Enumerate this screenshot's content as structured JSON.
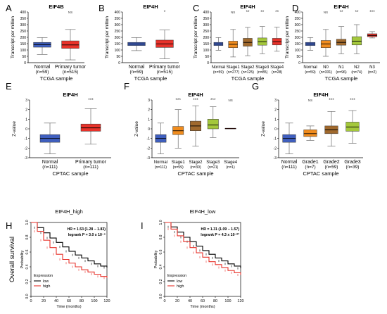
{
  "chart_data": [
    {
      "panel": "A",
      "type": "box",
      "title": "EIF4B",
      "ylabel": "Transcript per million",
      "xlabel": "TCGA sample",
      "ylim": [
        0,
        400
      ],
      "yticks": [
        0,
        50,
        100,
        150,
        200,
        250,
        300,
        350,
        400
      ],
      "categories": [
        "Normal",
        "Primary tumor"
      ],
      "counts": [
        "(n=59)",
        "(n=515)"
      ],
      "box_colors": [
        "#3f5fbf",
        "#e8322a"
      ],
      "significance": [
        "",
        "NS"
      ],
      "boxes": [
        {
          "min": 65,
          "q1": 122,
          "median": 143,
          "q3": 160,
          "max": 198
        },
        {
          "min": 22,
          "q1": 113,
          "median": 140,
          "q3": 172,
          "max": 262
        }
      ]
    },
    {
      "panel": "B",
      "type": "box",
      "title": "EIF4H",
      "ylabel": "Transcript per million",
      "xlabel": "TCGA sample",
      "ylim": [
        0,
        400
      ],
      "yticks": [
        0,
        50,
        100,
        150,
        200,
        250,
        300,
        350,
        400
      ],
      "categories": [
        "Normal",
        "Primary tumor"
      ],
      "counts": [
        "(n=59)",
        "(n=515)"
      ],
      "box_colors": [
        "#3f5fbf",
        "#e8322a"
      ],
      "significance": [
        "",
        "*"
      ],
      "boxes": [
        {
          "min": 95,
          "q1": 135,
          "median": 147,
          "q3": 160,
          "max": 198
        },
        {
          "min": 30,
          "q1": 120,
          "median": 148,
          "q3": 178,
          "max": 258
        }
      ]
    },
    {
      "panel": "C",
      "type": "box",
      "title": "EIF4H",
      "ylabel": "Transcript per million",
      "xlabel": "TCGA sample",
      "ylim": [
        0,
        400
      ],
      "yticks": [
        0,
        50,
        100,
        150,
        200,
        250,
        300,
        350,
        400
      ],
      "categories": [
        "Normal",
        "Stage1",
        "Stage2",
        "Stage3",
        "Stage4"
      ],
      "counts": [
        "(n=59)",
        "(n=277)",
        "(n=125)",
        "(n=85)",
        "(n=28)"
      ],
      "box_colors": [
        "#3f5fbf",
        "#f08c1e",
        "#a0692d",
        "#a4c83c",
        "#e8322a"
      ],
      "significance": [
        "",
        "NS",
        "**",
        "**",
        "**"
      ],
      "boxes": [
        {
          "min": 98,
          "q1": 135,
          "median": 147,
          "q3": 160,
          "max": 198
        },
        {
          "min": 45,
          "q1": 118,
          "median": 145,
          "q3": 170,
          "max": 262
        },
        {
          "min": 55,
          "q1": 130,
          "median": 160,
          "q3": 192,
          "max": 278
        },
        {
          "min": 70,
          "q1": 138,
          "median": 165,
          "q3": 195,
          "max": 285
        },
        {
          "min": 90,
          "q1": 140,
          "median": 165,
          "q3": 192,
          "max": 280
        }
      ]
    },
    {
      "panel": "D",
      "type": "box",
      "title": "EIF4H",
      "ylabel": "Transcript per million",
      "xlabel": "TCGA sample",
      "ylim": [
        0,
        400
      ],
      "yticks": [
        0,
        50,
        100,
        150,
        200,
        250,
        300,
        350,
        400
      ],
      "categories": [
        "Normal",
        "N0",
        "N1",
        "N2",
        "N3"
      ],
      "counts": [
        "(n=59)",
        "(n=331)",
        "(n=96)",
        "(n=74)",
        "(n=2)"
      ],
      "box_colors": [
        "#3f5fbf",
        "#f08c1e",
        "#a0692d",
        "#a4c83c",
        "#e8322a"
      ],
      "significance": [
        "",
        "NS",
        "**",
        "**",
        "***"
      ],
      "boxes": [
        {
          "min": 98,
          "q1": 135,
          "median": 147,
          "q3": 160,
          "max": 198
        },
        {
          "min": 50,
          "q1": 118,
          "median": 148,
          "q3": 175,
          "max": 262
        },
        {
          "min": 70,
          "q1": 138,
          "median": 160,
          "q3": 185,
          "max": 285
        },
        {
          "min": 70,
          "q1": 140,
          "median": 170,
          "q3": 205,
          "max": 300
        },
        {
          "min": 195,
          "q1": 205,
          "median": 215,
          "q3": 228,
          "max": 245
        }
      ]
    },
    {
      "panel": "E",
      "type": "box",
      "title": "EIF4H",
      "ylabel": "Z-value",
      "xlabel": "CPTAC sample",
      "ylim": [
        -3,
        3
      ],
      "yticks": [
        -3,
        -2,
        -1,
        0,
        1,
        2,
        3
      ],
      "categories": [
        "Normal",
        "Primary tumor"
      ],
      "counts": [
        "(n=111)",
        "(n=111)"
      ],
      "box_colors": [
        "#3f5fbf",
        "#e8322a"
      ],
      "significance": [
        "",
        "***"
      ],
      "boxes": [
        {
          "min": -2.6,
          "q1": -1.4,
          "median": -1.0,
          "q3": -0.6,
          "max": 0.6
        },
        {
          "min": -1.6,
          "q1": -0.25,
          "median": 0.1,
          "q3": 0.5,
          "max": 2.1
        }
      ]
    },
    {
      "panel": "F",
      "type": "box",
      "title": "EIF4H",
      "ylabel": "Z-value",
      "xlabel": "CPTAC sample",
      "ylim": [
        -3,
        3
      ],
      "yticks": [
        -3,
        -2,
        -1,
        0,
        1,
        2,
        3
      ],
      "categories": [
        "Normal",
        "Stage1",
        "Stage2",
        "Stage3",
        "Stage4"
      ],
      "counts": [
        "(n=111)",
        "(n=59)",
        "(n=30)",
        "(n=21)",
        "(n=1)"
      ],
      "box_colors": [
        "#3f5fbf",
        "#f08c1e",
        "#a0692d",
        "#a4c83c",
        "#e8322a"
      ],
      "significance": [
        "",
        "***",
        "***",
        "***",
        "NS"
      ],
      "boxes": [
        {
          "min": -2.6,
          "q1": -1.4,
          "median": -1.0,
          "q3": -0.6,
          "max": 0.6
        },
        {
          "min": -2.0,
          "q1": -0.6,
          "median": -0.2,
          "q3": 0.25,
          "max": 2.0
        },
        {
          "min": -1.8,
          "q1": -0.2,
          "median": 0.3,
          "q3": 0.8,
          "max": 2.4
        },
        {
          "min": -0.9,
          "q1": 0.0,
          "median": 0.4,
          "q3": 1.0,
          "max": 2.3
        },
        {
          "min": 0.05,
          "q1": 0.05,
          "median": 0.05,
          "q3": 0.05,
          "max": 0.05
        }
      ]
    },
    {
      "panel": "G",
      "type": "box",
      "title": "EIF4H",
      "ylabel": "Z-value",
      "xlabel": "CPTAC sample",
      "ylim": [
        -3,
        3
      ],
      "yticks": [
        -3,
        -2,
        -1,
        0,
        1,
        2,
        3
      ],
      "categories": [
        "Normal",
        "Grade1",
        "Grade2",
        "Grade3"
      ],
      "counts": [
        "(n=111)",
        "(n=7)",
        "(n=59)",
        "(n=39)"
      ],
      "box_colors": [
        "#3f5fbf",
        "#f08c1e",
        "#a0692d",
        "#a4c83c"
      ],
      "significance": [
        "",
        "NS",
        "***",
        "***"
      ],
      "boxes": [
        {
          "min": -2.6,
          "q1": -1.4,
          "median": -1.0,
          "q3": -0.6,
          "max": 0.6
        },
        {
          "min": -1.2,
          "q1": -0.8,
          "median": -0.5,
          "q3": -0.1,
          "max": 0.3
        },
        {
          "min": -1.8,
          "q1": -0.5,
          "median": -0.1,
          "q3": 0.3,
          "max": 1.8
        },
        {
          "min": -1.5,
          "q1": -0.25,
          "median": 0.2,
          "q3": 0.7,
          "max": 1.9
        }
      ]
    },
    {
      "panel": "H",
      "type": "line",
      "title": "EIF4H_high",
      "ylabel": "Probability",
      "outer_ylabel": "Overall survival",
      "xlabel": "Time (months)",
      "xlim": [
        0,
        120
      ],
      "xticks": [
        0,
        20,
        40,
        60,
        80,
        100,
        120
      ],
      "ylim": [
        0,
        1
      ],
      "yticks": [
        0.0,
        0.2,
        0.4,
        0.6,
        0.8,
        1.0
      ],
      "stats": [
        "HR = 1.53 (1.28 − 1.83)",
        "logrank P = 3.0 x 10⁻⁶"
      ],
      "legend_title": "Expression",
      "series": [
        {
          "name": "low",
          "color": "#000000",
          "x": [
            0,
            10,
            20,
            30,
            40,
            50,
            60,
            70,
            80,
            90,
            100,
            110,
            120
          ],
          "y": [
            1.0,
            0.93,
            0.86,
            0.79,
            0.73,
            0.67,
            0.61,
            0.56,
            0.52,
            0.48,
            0.44,
            0.41,
            0.39
          ]
        },
        {
          "name": "high",
          "color": "#e8322a",
          "x": [
            0,
            10,
            20,
            30,
            40,
            50,
            60,
            70,
            80,
            90,
            100,
            110,
            120
          ],
          "y": [
            1.0,
            0.88,
            0.76,
            0.66,
            0.57,
            0.5,
            0.45,
            0.4,
            0.36,
            0.33,
            0.3,
            0.27,
            0.25
          ]
        }
      ]
    },
    {
      "panel": "I",
      "type": "line",
      "title": "EIF4H_low",
      "ylabel": "Probability",
      "xlabel": "Time (months)",
      "xlim": [
        0,
        120
      ],
      "xticks": [
        0,
        20,
        40,
        60,
        80,
        100,
        120
      ],
      "ylim": [
        0,
        1
      ],
      "yticks": [
        0.0,
        0.2,
        0.4,
        0.6,
        0.8,
        1.0
      ],
      "stats": [
        "HR = 1.31 (1.09 − 1.57)",
        "logrank P = 4.3 x 10⁻⁰³"
      ],
      "legend_title": "Expression",
      "series": [
        {
          "name": "low",
          "color": "#000000",
          "x": [
            0,
            10,
            20,
            30,
            40,
            50,
            60,
            70,
            80,
            90,
            100,
            110,
            120
          ],
          "y": [
            1.0,
            0.94,
            0.87,
            0.8,
            0.74,
            0.68,
            0.62,
            0.57,
            0.52,
            0.48,
            0.44,
            0.41,
            0.38
          ]
        },
        {
          "name": "high",
          "color": "#e8322a",
          "x": [
            0,
            10,
            20,
            30,
            40,
            50,
            60,
            70,
            80,
            90,
            100,
            110,
            120
          ],
          "y": [
            1.0,
            0.91,
            0.82,
            0.74,
            0.66,
            0.59,
            0.53,
            0.47,
            0.43,
            0.39,
            0.35,
            0.32,
            0.29
          ]
        }
      ]
    }
  ]
}
